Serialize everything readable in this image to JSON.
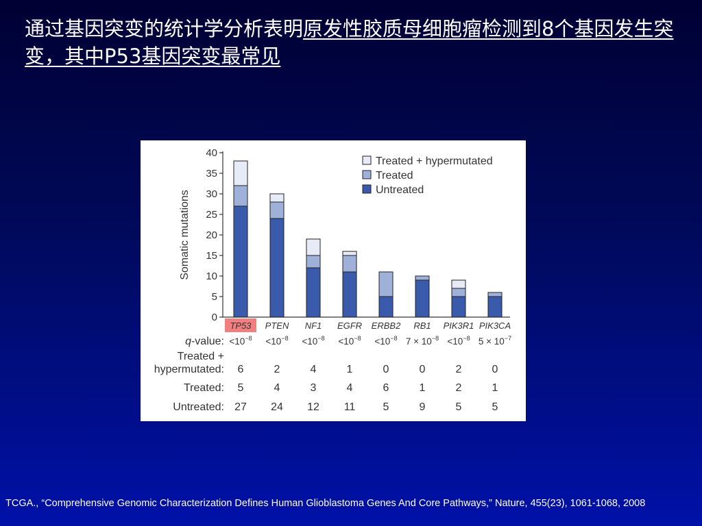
{
  "slide": {
    "title_part1": "通过基因突变的统计学分析表明",
    "title_part2": "原发性胶质母细胞瘤检测到8个基因发生突变，其中P53基因突变最常见",
    "citation": "TCGA., “Comprehensive Genomic Characterization Defines Human Glioblastoma Genes And Core Pathways,” Nature, 455(23), 1061-1068, 2008"
  },
  "chart_data": {
    "type": "bar",
    "stacked": true,
    "ylabel": "Somatic mutations",
    "ylim": [
      0,
      40
    ],
    "yticks": [
      0,
      5,
      10,
      15,
      20,
      25,
      30,
      35,
      40
    ],
    "categories": [
      "TP53",
      "PTEN",
      "NF1",
      "EGFR",
      "ERBB2",
      "RB1",
      "PIK3R1",
      "PIK3CA"
    ],
    "highlighted_category": "TP53",
    "highlight_color": "#f08080",
    "series": [
      {
        "name": "Untreated",
        "color": "#3a5aab",
        "values": [
          27,
          24,
          12,
          11,
          5,
          9,
          5,
          5
        ]
      },
      {
        "name": "Treated",
        "color": "#9fb1d9",
        "values": [
          5,
          4,
          3,
          4,
          6,
          1,
          2,
          1
        ]
      },
      {
        "name": "Treated + hypermutated",
        "color": "#e6ebf7",
        "values": [
          6,
          2,
          4,
          1,
          0,
          0,
          2,
          0
        ]
      }
    ],
    "legend_order": [
      "Treated + hypermutated",
      "Treated",
      "Untreated"
    ],
    "legend_position": "top-right",
    "q_value_label": "-value:",
    "q_value_label_italic": "q",
    "q_values": [
      {
        "base": "<10",
        "exp": "−8"
      },
      {
        "base": "<10",
        "exp": "−8"
      },
      {
        "base": "<10",
        "exp": "−8"
      },
      {
        "base": "<10",
        "exp": "−8"
      },
      {
        "base": "<10",
        "exp": "−8"
      },
      {
        "base": "7 × 10",
        "exp": "−8"
      },
      {
        "base": "<10",
        "exp": "−8"
      },
      {
        "base": "5 × 10",
        "exp": "−7"
      }
    ],
    "table_rows": [
      {
        "label_lines": [
          "Treated +",
          "hypermutated:"
        ],
        "values": [
          6,
          2,
          4,
          1,
          0,
          0,
          2,
          0
        ]
      },
      {
        "label_lines": [
          "Treated:"
        ],
        "values": [
          5,
          4,
          3,
          4,
          6,
          1,
          2,
          1
        ]
      },
      {
        "label_lines": [
          "Untreated:"
        ],
        "values": [
          27,
          24,
          12,
          11,
          5,
          9,
          5,
          5
        ]
      }
    ]
  }
}
